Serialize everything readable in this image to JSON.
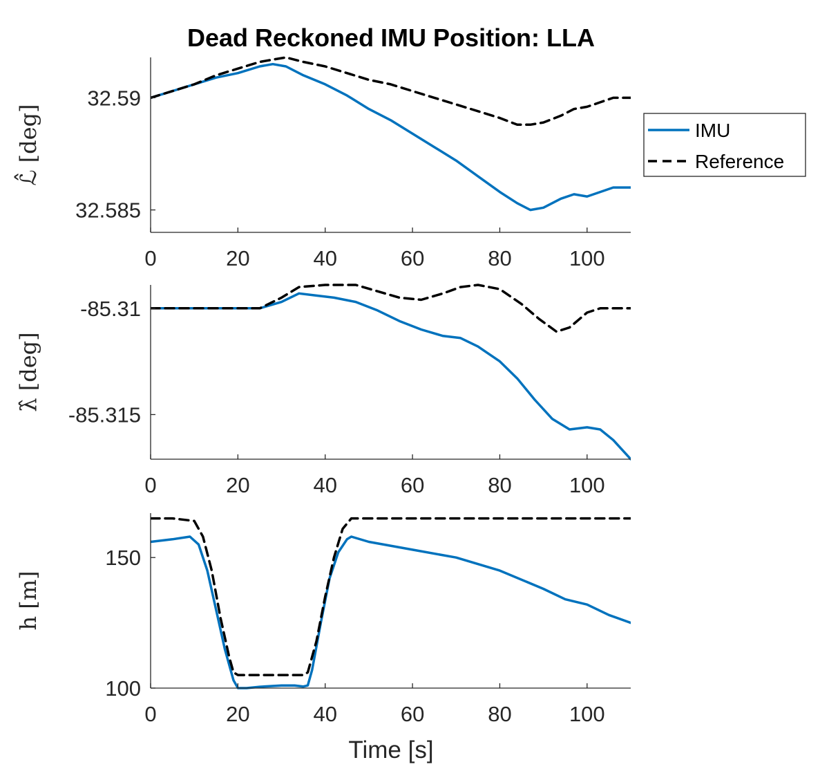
{
  "figure": {
    "title": "Dead Reckoned IMU Position: LLA",
    "xlabel": "Time [s]"
  },
  "legend": {
    "entries": [
      {
        "label": "IMU",
        "color": "#0072BD",
        "style": "solid"
      },
      {
        "label": "Reference",
        "color": "#000000",
        "style": "dashed"
      }
    ],
    "location": "outside-right-of-top-panel"
  },
  "chart_data": [
    {
      "type": "line",
      "ylabel": "ℒ̂ [deg]",
      "xlim": [
        0,
        110
      ],
      "ylim": [
        32.584,
        32.5918
      ],
      "xticks": [
        0,
        20,
        40,
        60,
        80,
        100
      ],
      "yticks": [
        32.585,
        32.59
      ],
      "yticklabels": [
        "32.585",
        "32.59"
      ],
      "grid": false,
      "series": [
        {
          "name": "IMU",
          "color": "#0072BD",
          "style": "solid",
          "x": [
            0,
            5,
            10,
            15,
            20,
            25,
            28,
            31,
            35,
            40,
            45,
            50,
            55,
            60,
            65,
            70,
            75,
            80,
            84,
            87,
            90,
            94,
            97,
            100,
            103,
            106,
            110
          ],
          "y": [
            32.59,
            32.5903,
            32.5906,
            32.5909,
            32.5911,
            32.5914,
            32.5915,
            32.5914,
            32.591,
            32.5906,
            32.5901,
            32.5895,
            32.589,
            32.5884,
            32.5878,
            32.5872,
            32.5865,
            32.5858,
            32.5853,
            32.585,
            32.5851,
            32.5855,
            32.5857,
            32.5856,
            32.5858,
            32.586,
            32.586
          ]
        },
        {
          "name": "Reference",
          "color": "#000000",
          "style": "dashed",
          "x": [
            0,
            5,
            10,
            15,
            20,
            25,
            28,
            31,
            35,
            40,
            45,
            50,
            55,
            60,
            65,
            70,
            75,
            80,
            84,
            87,
            90,
            94,
            97,
            100,
            103,
            106,
            110
          ],
          "y": [
            32.59,
            32.5903,
            32.5906,
            32.591,
            32.5913,
            32.5916,
            32.5917,
            32.5918,
            32.5916,
            32.5914,
            32.5911,
            32.5908,
            32.5906,
            32.5903,
            32.59,
            32.5897,
            32.5894,
            32.5891,
            32.5888,
            32.5888,
            32.5889,
            32.5892,
            32.5895,
            32.5896,
            32.5898,
            32.59,
            32.59
          ]
        }
      ]
    },
    {
      "type": "line",
      "ylabel": "λ̂ [deg]",
      "xlim": [
        0,
        110
      ],
      "ylim": [
        -85.3171,
        -85.3089
      ],
      "xticks": [
        0,
        20,
        40,
        60,
        80,
        100
      ],
      "yticks": [
        -85.315,
        -85.31
      ],
      "yticklabels": [
        "-85.315",
        "-85.31"
      ],
      "grid": false,
      "series": [
        {
          "name": "IMU",
          "color": "#0072BD",
          "style": "solid",
          "x": [
            0,
            10,
            20,
            25,
            30,
            34,
            38,
            42,
            47,
            52,
            57,
            62,
            67,
            71,
            75,
            80,
            84,
            88,
            92,
            96,
            100,
            103,
            106,
            110
          ],
          "y": [
            -85.31,
            -85.31,
            -85.31,
            -85.31,
            -85.3097,
            -85.3093,
            -85.3094,
            -85.3095,
            -85.3097,
            -85.3101,
            -85.3106,
            -85.311,
            -85.3113,
            -85.3114,
            -85.3118,
            -85.3125,
            -85.3133,
            -85.3143,
            -85.3152,
            -85.3157,
            -85.3156,
            -85.3157,
            -85.3162,
            -85.3171
          ]
        },
        {
          "name": "Reference",
          "color": "#000000",
          "style": "dashed",
          "x": [
            0,
            10,
            20,
            25,
            30,
            34,
            40,
            47,
            52,
            57,
            62,
            67,
            71,
            75,
            80,
            85,
            89,
            93,
            96,
            100,
            103,
            106,
            110
          ],
          "y": [
            -85.31,
            -85.31,
            -85.31,
            -85.31,
            -85.3095,
            -85.309,
            -85.3089,
            -85.3089,
            -85.3092,
            -85.3095,
            -85.3096,
            -85.3093,
            -85.309,
            -85.3089,
            -85.3091,
            -85.3098,
            -85.3105,
            -85.3111,
            -85.3109,
            -85.3102,
            -85.31,
            -85.31,
            -85.31
          ]
        }
      ]
    },
    {
      "type": "line",
      "ylabel": "h [m]",
      "xlim": [
        0,
        110
      ],
      "ylim": [
        100,
        167
      ],
      "xticks": [
        0,
        20,
        40,
        60,
        80,
        100
      ],
      "yticks": [
        100,
        150
      ],
      "yticklabels": [
        "100",
        "150"
      ],
      "grid": false,
      "series": [
        {
          "name": "IMU",
          "color": "#0072BD",
          "style": "solid",
          "x": [
            0,
            5,
            9,
            11,
            13,
            15,
            17,
            19,
            20,
            22,
            25,
            30,
            33,
            35,
            36,
            37,
            39,
            41,
            43,
            45,
            46,
            50,
            60,
            70,
            80,
            90,
            95,
            100,
            105,
            110
          ],
          "y": [
            156,
            157,
            158,
            155,
            145,
            130,
            115,
            103,
            100,
            100,
            100.5,
            101,
            101,
            100.6,
            101,
            107,
            125,
            142,
            152,
            157,
            158,
            156,
            153,
            150,
            145,
            138,
            134,
            132,
            128,
            125
          ]
        },
        {
          "name": "Reference",
          "color": "#000000",
          "style": "dashed",
          "x": [
            0,
            5,
            10,
            12,
            14,
            16,
            18,
            19,
            20,
            25,
            30,
            35,
            36,
            38,
            40,
            42,
            44,
            46,
            47,
            50,
            60,
            70,
            80,
            90,
            100,
            110
          ],
          "y": [
            165,
            165,
            164,
            158,
            145,
            127,
            112,
            106,
            105,
            105,
            105,
            105,
            106,
            118,
            135,
            150,
            161,
            165,
            165,
            165,
            165,
            165,
            165,
            165,
            165,
            165
          ]
        }
      ]
    }
  ]
}
